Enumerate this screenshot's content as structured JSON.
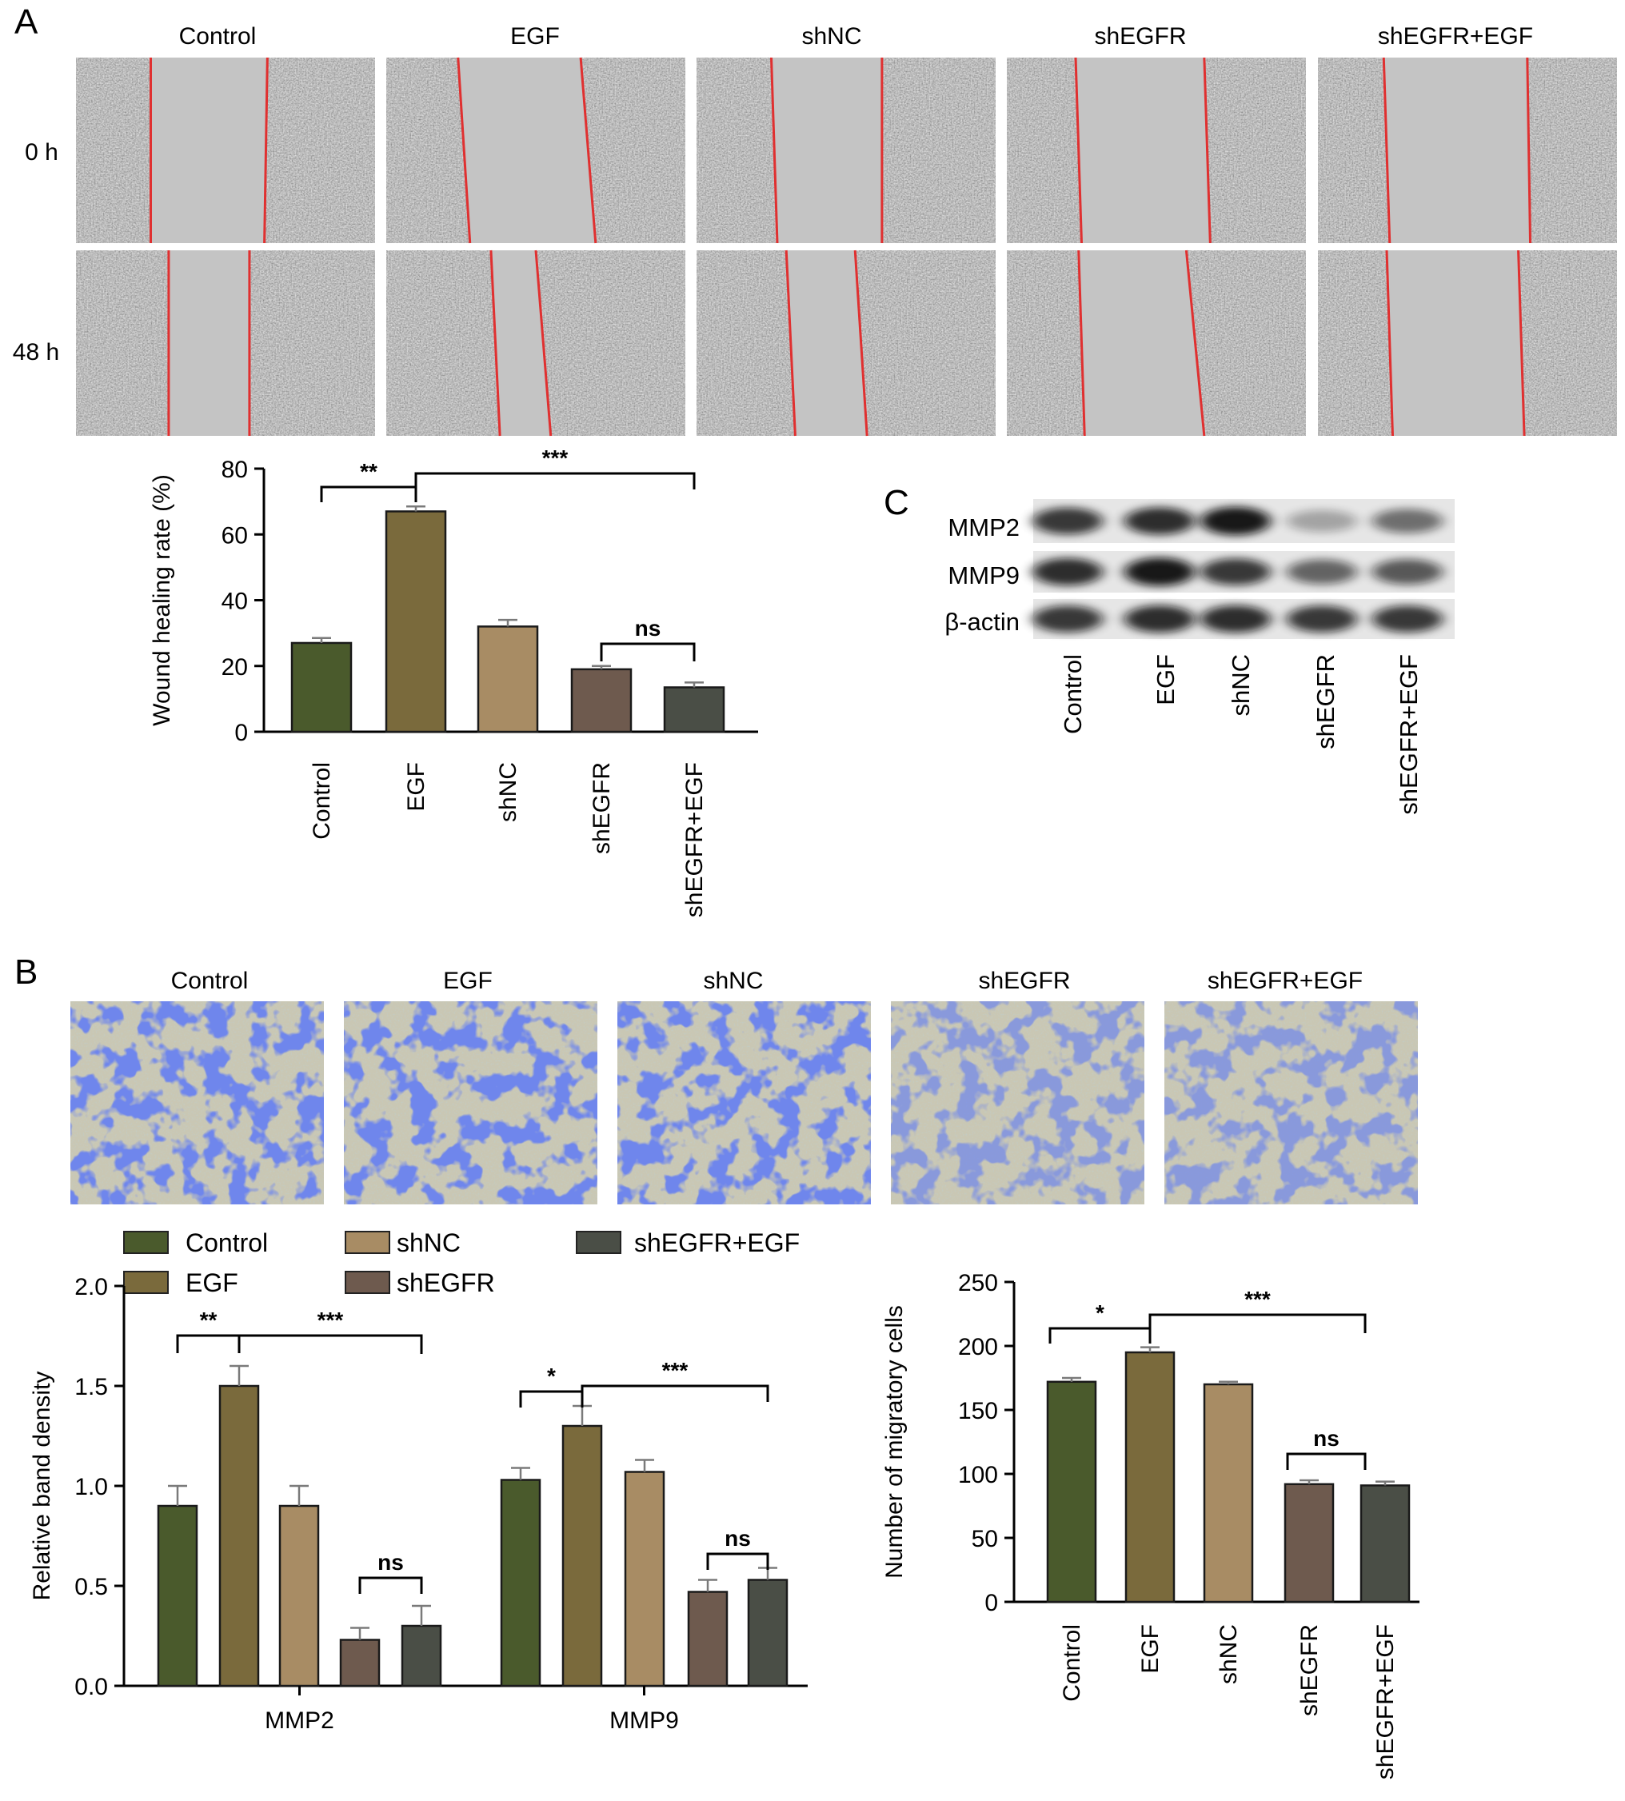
{
  "colors": {
    "Control": "#4a5a2c",
    "EGF": "#7a6a3c",
    "shNC": "#a88c64",
    "shEGFR": "#6e5a4e",
    "shEGFR+EGF": "#4a4e46",
    "wound_line": "#e03030",
    "stain": "#2a3ed6"
  },
  "panels": {
    "A": {
      "letter": "A",
      "column_labels": [
        "Control",
        "EGF",
        "shNC",
        "shEGFR",
        "shEGFR+EGF"
      ],
      "row_labels": [
        "0 h",
        "48 h"
      ]
    },
    "B": {
      "letter": "B",
      "column_labels": [
        "Control",
        "EGF",
        "shNC",
        "shEGFR",
        "shEGFR+EGF"
      ]
    },
    "C": {
      "letter": "C",
      "bands": [
        "MMP2",
        "MMP9",
        "β-actin"
      ],
      "lanes": [
        "Control",
        "EGF",
        "shNC",
        "shEGFR",
        "shEGFR+EGF"
      ],
      "band_intensity": {
        "MMP2": [
          0.8,
          0.85,
          0.95,
          0.3,
          0.55
        ],
        "MMP9": [
          0.85,
          0.95,
          0.8,
          0.6,
          0.65
        ],
        "β-actin": [
          0.8,
          0.85,
          0.85,
          0.8,
          0.8
        ]
      }
    }
  },
  "legend": {
    "entries": [
      "Control",
      "shNC",
      "shEGFR+EGF",
      "EGF",
      "shEGFR"
    ]
  },
  "chart_data": [
    {
      "id": "wound-healing",
      "type": "bar",
      "categories": [
        "Control",
        "EGF",
        "shNC",
        "shEGFR",
        "shEGFR+EGF"
      ],
      "values": [
        27,
        67,
        32,
        19,
        13.5
      ],
      "errors": [
        1.5,
        1.5,
        2,
        1,
        1.5
      ],
      "ylabel": "Wound healing rate (%)",
      "ylim": [
        0,
        80
      ],
      "yticks": [
        0,
        20,
        40,
        60,
        80
      ],
      "significance": [
        {
          "from": 0,
          "to": 1,
          "label": "**"
        },
        {
          "from": 1,
          "to": 4,
          "label": "***"
        },
        {
          "from": 3,
          "to": 4,
          "label": "ns"
        }
      ]
    },
    {
      "id": "band-density",
      "type": "bar",
      "groups": [
        "MMP2",
        "MMP9"
      ],
      "series": [
        {
          "name": "Control",
          "values": [
            0.9,
            1.03
          ],
          "errors": [
            0.1,
            0.06
          ]
        },
        {
          "name": "EGF",
          "values": [
            1.5,
            1.3
          ],
          "errors": [
            0.1,
            0.1
          ]
        },
        {
          "name": "shNC",
          "values": [
            0.9,
            1.07
          ],
          "errors": [
            0.1,
            0.06
          ]
        },
        {
          "name": "shEGFR",
          "values": [
            0.23,
            0.47
          ],
          "errors": [
            0.06,
            0.06
          ]
        },
        {
          "name": "shEGFR+EGF",
          "values": [
            0.3,
            0.53
          ],
          "errors": [
            0.1,
            0.06
          ]
        }
      ],
      "ylabel": "Relative band density",
      "ylim": [
        0,
        2.0
      ],
      "yticks": [
        "0.0",
        "0.5",
        "1.0",
        "1.5",
        "2.0"
      ],
      "significance": [
        {
          "group": 0,
          "from": 0,
          "to": 1,
          "label": "**"
        },
        {
          "group": 0,
          "from": 1,
          "to": 4,
          "label": "***"
        },
        {
          "group": 0,
          "from": 3,
          "to": 4,
          "label": "ns"
        },
        {
          "group": 1,
          "from": 0,
          "to": 1,
          "label": "*"
        },
        {
          "group": 1,
          "from": 1,
          "to": 4,
          "label": "***"
        },
        {
          "group": 1,
          "from": 3,
          "to": 4,
          "label": "ns"
        }
      ]
    },
    {
      "id": "migratory-cells",
      "type": "bar",
      "categories": [
        "Control",
        "EGF",
        "shNC",
        "shEGFR",
        "shEGFR+EGF"
      ],
      "values": [
        172,
        195,
        170,
        92,
        91
      ],
      "errors": [
        3,
        4,
        2,
        3,
        3
      ],
      "ylabel": "Number of migratory cells",
      "ylim": [
        0,
        250
      ],
      "yticks": [
        0,
        50,
        100,
        150,
        200,
        250
      ],
      "significance": [
        {
          "from": 0,
          "to": 1,
          "label": "*"
        },
        {
          "from": 1,
          "to": 4,
          "label": "***"
        },
        {
          "from": 3,
          "to": 4,
          "label": "ns"
        }
      ]
    }
  ]
}
